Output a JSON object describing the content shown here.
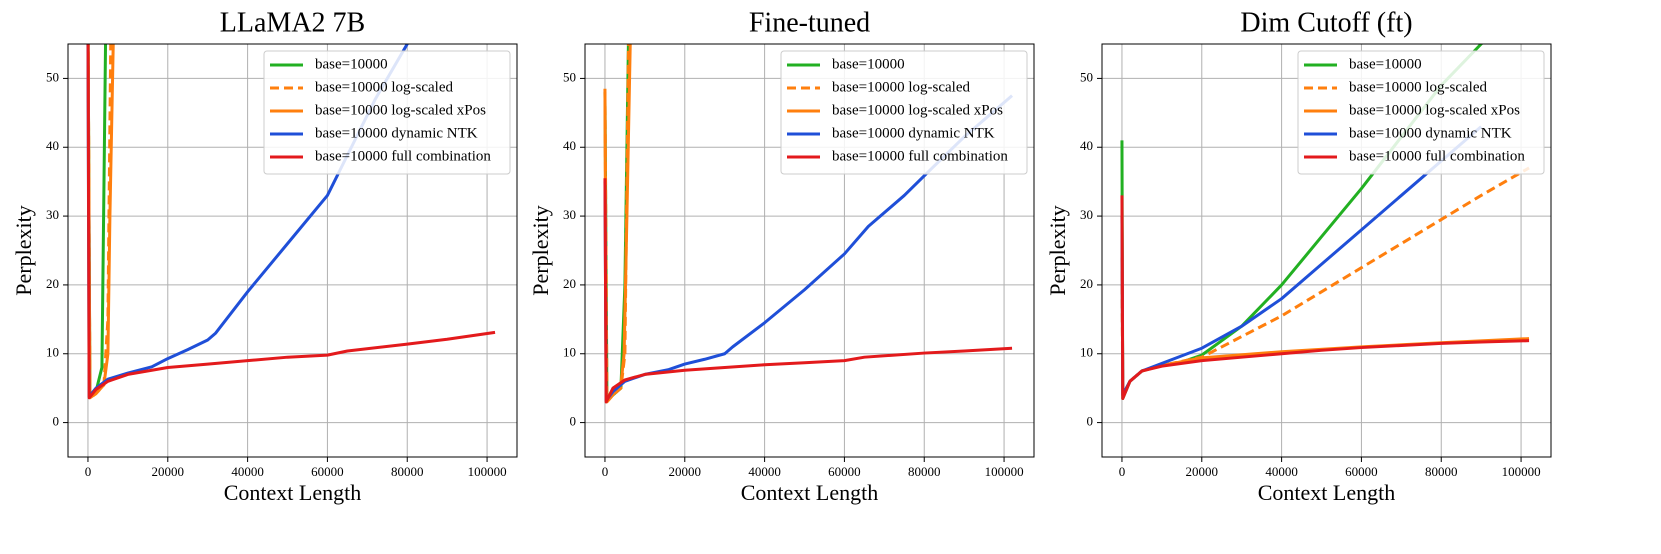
{
  "chart_data": [
    {
      "type": "line",
      "title": "LLaMA2 7B",
      "xlabel": "Context Length",
      "ylabel": "Perplexity",
      "xlim": [
        -5000,
        107500
      ],
      "ylim": [
        -5,
        55
      ],
      "xticks": [
        0,
        20000,
        40000,
        60000,
        80000,
        100000
      ],
      "yticks": [
        0,
        10,
        20,
        30,
        40,
        50
      ],
      "grid": true,
      "legend": "upper right",
      "series": [
        {
          "name": "base=10000",
          "color": "#22b022",
          "linestyle": "solid",
          "x": [
            0,
            500,
            2000,
            3500,
            4500
          ],
          "values": [
            60,
            3.8,
            4.5,
            8,
            60
          ]
        },
        {
          "name": "base=10000 log-scaled",
          "color": "#ff7f0e",
          "linestyle": "dashed",
          "x": [
            0,
            500,
            2000,
            4000,
            5000,
            5800
          ],
          "values": [
            60,
            3.6,
            4.2,
            5.5,
            15,
            60
          ]
        },
        {
          "name": "base=10000 log-scaled xPos",
          "color": "#ff7f0e",
          "linestyle": "solid",
          "x": [
            0,
            500,
            2000,
            4000,
            5000,
            5500,
            6500
          ],
          "values": [
            60,
            3.6,
            4.2,
            5.5,
            10,
            30,
            60
          ]
        },
        {
          "name": "base=10000 dynamic NTK",
          "color": "#1f4fd8",
          "linestyle": "solid",
          "x": [
            0,
            300,
            2000,
            5000,
            10000,
            16000,
            20000,
            25000,
            30000,
            32000,
            40000,
            50000,
            60000,
            66000,
            72000,
            80000,
            82000
          ],
          "values": [
            55,
            3.8,
            5,
            6.3,
            7.2,
            8.1,
            9.3,
            10.6,
            12,
            13,
            19,
            26,
            33,
            40,
            47,
            55,
            57
          ]
        },
        {
          "name": "base=10000 full combination",
          "color": "#e31a1c",
          "linestyle": "solid",
          "x": [
            0,
            300,
            2000,
            5000,
            10000,
            20000,
            30000,
            40000,
            50000,
            60000,
            65000,
            80000,
            90000,
            102000
          ],
          "values": [
            60,
            3.6,
            4.8,
            6,
            7,
            8,
            8.5,
            9,
            9.5,
            9.8,
            10.4,
            11.4,
            12.1,
            13.1
          ]
        }
      ]
    },
    {
      "type": "line",
      "title": "Fine-tuned",
      "xlabel": "Context Length",
      "ylabel": "Perplexity",
      "xlim": [
        -5000,
        107500
      ],
      "ylim": [
        -5,
        55
      ],
      "xticks": [
        0,
        20000,
        40000,
        60000,
        80000,
        100000
      ],
      "yticks": [
        0,
        10,
        20,
        30,
        40,
        50
      ],
      "grid": true,
      "legend": "upper right",
      "series": [
        {
          "name": "base=10000",
          "color": "#22b022",
          "linestyle": "solid",
          "x": [
            0,
            500,
            2000,
            4000,
            5000,
            6000
          ],
          "values": [
            48,
            3.2,
            4,
            5,
            20,
            60
          ]
        },
        {
          "name": "base=10000 log-scaled",
          "color": "#ff7f0e",
          "linestyle": "dashed",
          "x": [
            0,
            500,
            2000,
            4000,
            5000,
            6000
          ],
          "values": [
            48,
            3,
            4,
            5,
            10,
            60
          ]
        },
        {
          "name": "base=10000 log-scaled xPos",
          "color": "#ff7f0e",
          "linestyle": "solid",
          "x": [
            0,
            300,
            2000,
            4000,
            4800,
            5500,
            6500
          ],
          "values": [
            48.5,
            3.2,
            4,
            5.5,
            10,
            30,
            60
          ]
        },
        {
          "name": "base=10000 dynamic NTK",
          "color": "#1f4fd8",
          "linestyle": "solid",
          "x": [
            0,
            300,
            2000,
            5000,
            10000,
            16000,
            20000,
            25000,
            30000,
            32000,
            40000,
            50000,
            60000,
            66000,
            75000,
            82000,
            90000,
            102000
          ],
          "values": [
            35,
            3.2,
            4.5,
            6,
            7,
            7.7,
            8.5,
            9.2,
            10,
            11,
            14.5,
            19.3,
            24.5,
            28.5,
            33,
            37,
            41.5,
            47.5
          ]
        },
        {
          "name": "base=10000 full combination",
          "color": "#e31a1c",
          "linestyle": "solid",
          "x": [
            0,
            300,
            2000,
            5000,
            10000,
            20000,
            30000,
            40000,
            50000,
            60000,
            65000,
            80000,
            90000,
            102000
          ],
          "values": [
            35.5,
            3,
            5,
            6.2,
            7,
            7.6,
            8,
            8.4,
            8.7,
            9,
            9.5,
            10.1,
            10.4,
            10.8
          ]
        }
      ]
    },
    {
      "type": "line",
      "title": "Dim Cutoff (ft)",
      "xlabel": "Context Length",
      "ylabel": "Perplexity",
      "xlim": [
        -5000,
        107500
      ],
      "ylim": [
        -5,
        55
      ],
      "xticks": [
        0,
        20000,
        40000,
        60000,
        80000,
        100000
      ],
      "yticks": [
        0,
        10,
        20,
        30,
        40,
        50
      ],
      "grid": true,
      "legend": "upper right",
      "series": [
        {
          "name": "base=10000",
          "color": "#22b022",
          "linestyle": "solid",
          "x": [
            0,
            200,
            2000,
            5000,
            10000,
            15000,
            20000,
            30000,
            40000,
            50000,
            60000,
            70000,
            80000,
            90000,
            92000
          ],
          "values": [
            41,
            3.5,
            6,
            7.5,
            8.3,
            8.8,
            9.8,
            14,
            20,
            27,
            34,
            41.5,
            49,
            55,
            56
          ]
        },
        {
          "name": "base=10000 log-scaled",
          "color": "#ff7f0e",
          "linestyle": "dashed",
          "x": [
            0,
            200,
            2000,
            5000,
            10000,
            20000,
            30000,
            40000,
            50000,
            60000,
            70000,
            80000,
            90000,
            102000
          ],
          "values": [
            24,
            4,
            6,
            7.5,
            8.3,
            9.5,
            12.5,
            15.5,
            19,
            22.5,
            26,
            29.5,
            33,
            37
          ]
        },
        {
          "name": "base=10000 log-scaled xPos",
          "color": "#ff7f0e",
          "linestyle": "solid",
          "x": [
            0,
            200,
            2000,
            5000,
            10000,
            20000,
            40000,
            60000,
            80000,
            102000
          ],
          "values": [
            30,
            4,
            6,
            7.5,
            8.3,
            9.4,
            10.3,
            11,
            11.6,
            12.2
          ]
        },
        {
          "name": "base=10000 dynamic NTK",
          "color": "#1f4fd8",
          "linestyle": "solid",
          "x": [
            0,
            200,
            2000,
            5000,
            10000,
            20000,
            30000,
            40000,
            50000,
            60000,
            70000,
            80000,
            86000,
            90000
          ],
          "values": [
            30,
            4,
            6,
            7.5,
            8.6,
            10.8,
            14,
            18,
            23,
            28,
            33,
            38,
            41,
            43
          ]
        },
        {
          "name": "base=10000 full combination",
          "color": "#e31a1c",
          "linestyle": "solid",
          "x": [
            0,
            200,
            2000,
            5000,
            10000,
            20000,
            30000,
            40000,
            50000,
            60000,
            70000,
            80000,
            90000,
            102000
          ],
          "values": [
            33,
            3.5,
            6,
            7.5,
            8.2,
            9,
            9.5,
            10,
            10.5,
            10.9,
            11.2,
            11.5,
            11.7,
            11.9
          ]
        }
      ]
    }
  ]
}
